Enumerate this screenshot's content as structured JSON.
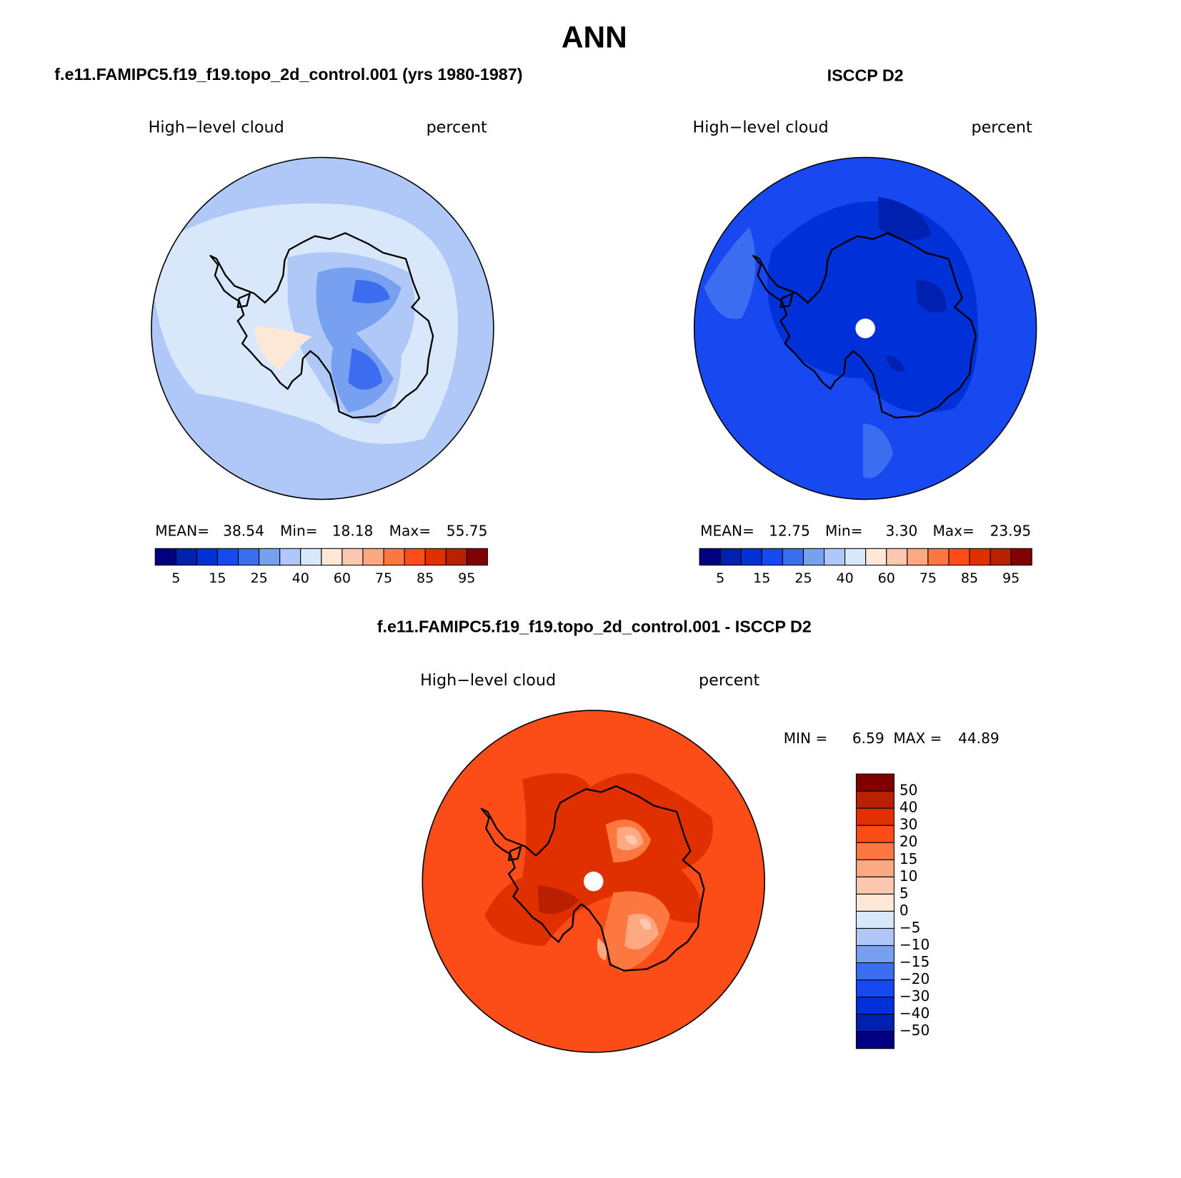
{
  "title": "ANN",
  "colorbar_colors": [
    "#000080",
    "#0020b0",
    "#0030d8",
    "#1848f0",
    "#3c6cf0",
    "#78a0f0",
    "#b0c8f8",
    "#d8e8fa",
    "#fde8d8",
    "#fdc8b0",
    "#fca880",
    "#fc7840",
    "#fc4c18",
    "#e03000",
    "#b82000",
    "#800000"
  ],
  "panels": [
    {
      "title": "f.e11.FAMIPC5.f19_f19.topo_2d_control.001 (yrs 1980-1987)",
      "variable": "High−level cloud",
      "units": "percent",
      "stats": [
        {
          "label": "MEAN=",
          "value": "38.54"
        },
        {
          "label": "Min=",
          "value": "18.18"
        },
        {
          "label": "Max=",
          "value": "55.75"
        }
      ],
      "colorbar_labels": [
        "5",
        "15",
        "25",
        "40",
        "60",
        "75",
        "85",
        "95"
      ]
    },
    {
      "title": "ISCCP D2",
      "variable": "High−level cloud",
      "units": "percent",
      "stats": [
        {
          "label": "MEAN=",
          "value": "12.75"
        },
        {
          "label": "Min=",
          "value": "3.30"
        },
        {
          "label": "Max=",
          "value": "23.95"
        }
      ],
      "colorbar_labels": [
        "5",
        "15",
        "25",
        "40",
        "60",
        "75",
        "85",
        "95"
      ]
    },
    {
      "title": "f.e11.FAMIPC5.f19_f19.topo_2d_control.001 - ISCCP D2",
      "variable": "High−level cloud",
      "units": "percent",
      "stats": [
        {
          "label": "MIN =",
          "value": "6.59"
        },
        {
          "label": "MAX =",
          "value": "44.89"
        }
      ],
      "colorbar_labels": [
        "50",
        "40",
        "30",
        "20",
        "15",
        "10",
        "5",
        "0",
        "−5",
        "−10",
        "−15",
        "−20",
        "−30",
        "−40",
        "−50"
      ]
    }
  ]
}
